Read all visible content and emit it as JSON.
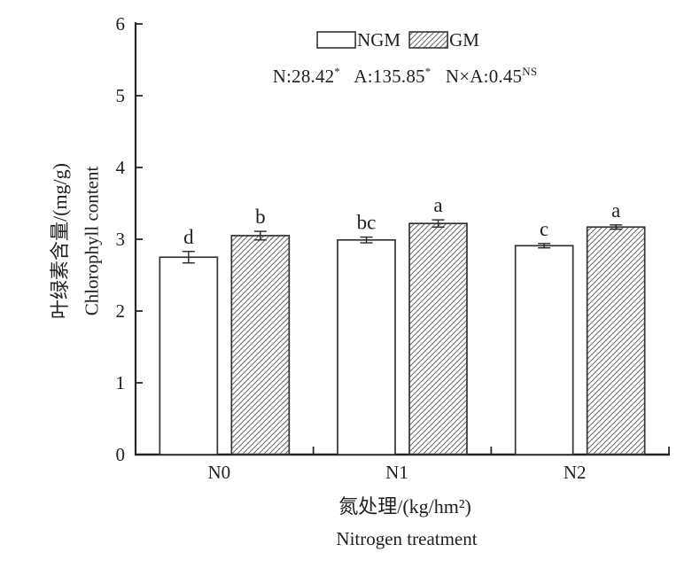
{
  "colors": {
    "ink": "#262626",
    "bar_outline": "#333333",
    "hatch_line": "#6b6b6b",
    "background": "#ffffff"
  },
  "chart_data": {
    "type": "bar",
    "title": "",
    "categories": [
      "N0",
      "N1",
      "N2"
    ],
    "series": [
      {
        "name": "NGM",
        "fill": "open",
        "values": [
          2.75,
          2.99,
          2.91
        ],
        "errors": [
          0.08,
          0.04,
          0.03
        ],
        "sig_letters": [
          "d",
          "bc",
          "c"
        ]
      },
      {
        "name": "GM",
        "fill": "hatched",
        "values": [
          3.05,
          3.22,
          3.17
        ],
        "errors": [
          0.06,
          0.05,
          0.03
        ],
        "sig_letters": [
          "b",
          "a",
          "a"
        ]
      }
    ],
    "ylabel_zh": "叶绿素含量/(mg/g)",
    "ylabel_en": "Chlorophyll content",
    "xlabel_zh": "氮处理/(kg/hm²)",
    "xlabel_en": "Nitrogen treatment",
    "ylim": [
      0,
      6
    ],
    "yticks": [
      0,
      1,
      2,
      3,
      4,
      5,
      6
    ],
    "grid": false,
    "legend_position": "top-center",
    "anova": {
      "segments": [
        {
          "text": "N:28.42",
          "sup": "*"
        },
        {
          "text": "A:135.85",
          "sup": "*"
        },
        {
          "text": "N×A:0.45",
          "sup": "NS"
        }
      ]
    }
  }
}
